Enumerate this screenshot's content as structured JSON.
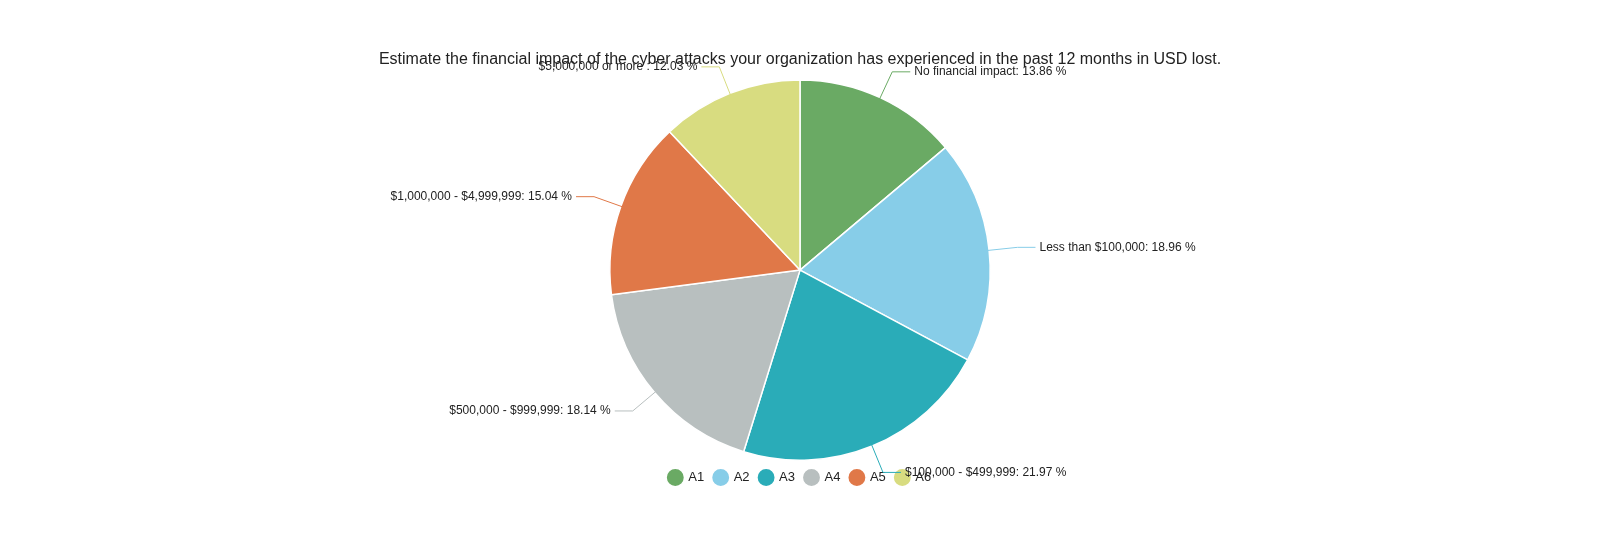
{
  "chart_data": {
    "type": "pie",
    "title": "Estimate the financial impact of the cyber attacks your organization has experienced in the past 12 months in USD lost.",
    "categories": [
      "A1",
      "A2",
      "A3",
      "A4",
      "A5",
      "A6"
    ],
    "values": [
      13.86,
      18.96,
      21.97,
      18.14,
      15.04,
      12.03
    ],
    "value_labels": [
      "No financial impact: 13.86 %",
      "Less than $100,000: 18.96 %",
      "$100,000 - $499,999: 21.97 %",
      "$500,000 - $999,999: 18.14 %",
      "$1,000,000 - $4,999,999: 15.04 %",
      "$5,000,000 or more : 12.03 %"
    ],
    "colors": [
      "#6aaa64",
      "#87cde8",
      "#2aacb8",
      "#b8bfbf",
      "#e07848",
      "#d8dc80"
    ],
    "legend": "bottom"
  }
}
